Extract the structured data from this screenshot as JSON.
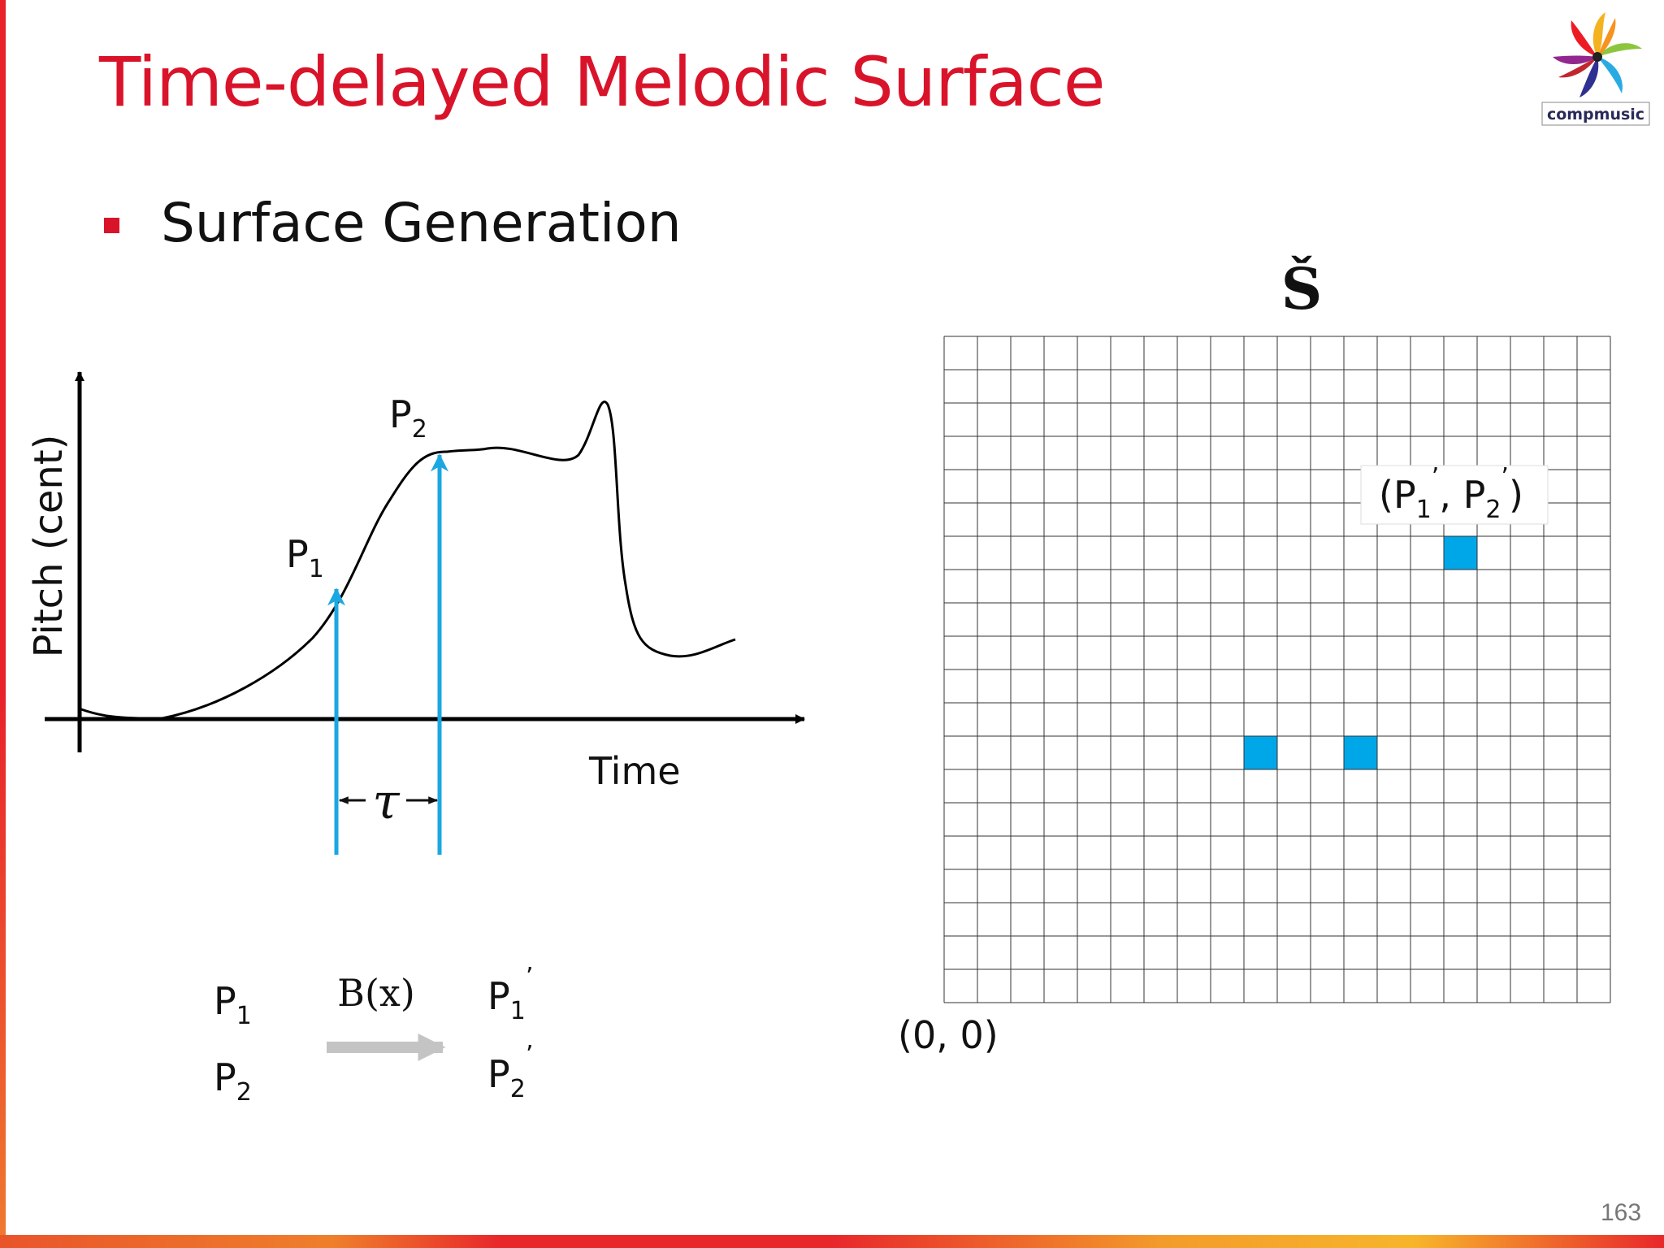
{
  "slide": {
    "title": "Time-delayed Melodic Surface",
    "bullet": "Surface Generation",
    "page_number": "163",
    "logo_text": "compmusic"
  },
  "left_plot": {
    "y_axis_label": "Pitch (cent)",
    "x_axis_label": "Time",
    "point1": {
      "letter": "P",
      "subscript": "1"
    },
    "point2": {
      "letter": "P",
      "subscript": "2"
    },
    "delay_symbol": "τ"
  },
  "mapping": {
    "function_label": "B(x)",
    "inputs": [
      {
        "letter": "P",
        "subscript": "1"
      },
      {
        "letter": "P",
        "subscript": "2"
      }
    ],
    "outputs": [
      {
        "letter": "P",
        "subscript": "1",
        "prime": "’"
      },
      {
        "letter": "P",
        "subscript": "2",
        "prime": "’"
      }
    ]
  },
  "surface": {
    "symbol": "Š",
    "origin_label": "(0, 0)",
    "grid_cols": 20,
    "grid_rows": 20,
    "point_label": {
      "open": "(P",
      "sub1": "1",
      "prime1": "’",
      "sep": ", P",
      "sub2": "2",
      "prime2": "’",
      "close": ")"
    },
    "highlighted_cells": [
      {
        "col": 9,
        "row": 7
      },
      {
        "col": 12,
        "row": 7
      },
      {
        "col": 15,
        "row": 13
      }
    ]
  },
  "colors": {
    "accent_red": "#d9142a",
    "arrow_blue": "#1ba7e1",
    "cell_blue": "#00a7e8",
    "mapping_arrow_gray": "#c4c4c4"
  }
}
